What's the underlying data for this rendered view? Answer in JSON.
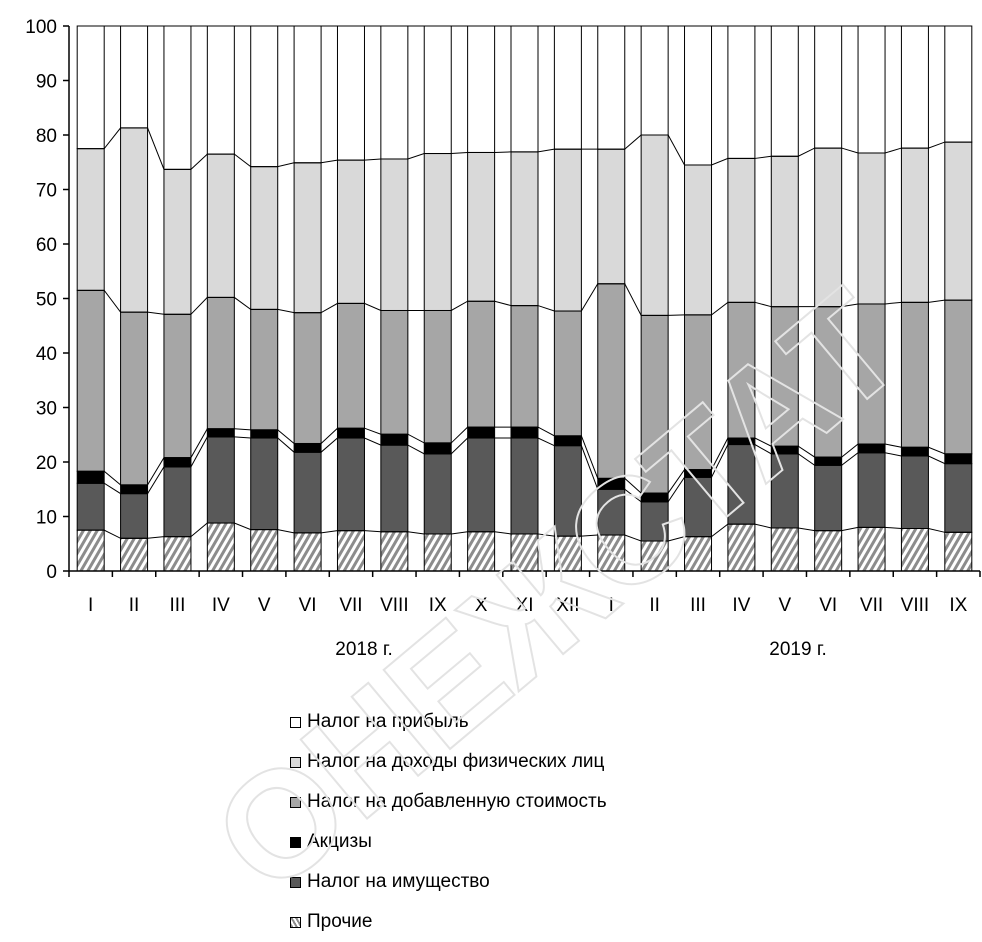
{
  "chart_data": {
    "type": "bar",
    "stacked": true,
    "ylim": [
      0,
      100
    ],
    "yticks": [
      0,
      10,
      20,
      30,
      40,
      50,
      60,
      70,
      80,
      90,
      100
    ],
    "categories": [
      "I",
      "II",
      "III",
      "IV",
      "V",
      "VI",
      "VII",
      "VIII",
      "IX",
      "X",
      "XI",
      "XII",
      "I",
      "II",
      "III",
      "IV",
      "V",
      "VI",
      "VII",
      "VIII",
      "IX"
    ],
    "year_groups": [
      {
        "label": "2018 г.",
        "from": 0,
        "to": 11
      },
      {
        "label": "2019 г.",
        "from": 12,
        "to": 20
      }
    ],
    "series": [
      {
        "name": "Прочие",
        "color": "#9a9a9a",
        "pattern": "hatch",
        "values": [
          7.5,
          6.0,
          6.3,
          8.8,
          7.6,
          7.0,
          7.4,
          7.2,
          6.8,
          7.2,
          6.8,
          6.4,
          6.6,
          5.5,
          6.3,
          8.6,
          7.9,
          7.4,
          8.0,
          7.8,
          7.1
        ]
      },
      {
        "name": "Налог на имущество",
        "color": "#595959",
        "values": [
          8.6,
          8.2,
          12.8,
          15.8,
          16.8,
          14.8,
          17.0,
          15.9,
          14.7,
          17.2,
          17.6,
          16.6,
          8.4,
          7.2,
          10.9,
          14.6,
          13.6,
          12.0,
          13.7,
          13.3,
          12.6
        ]
      },
      {
        "name": "Акцизы",
        "color": "#000000",
        "values": [
          2.2,
          1.6,
          1.7,
          1.5,
          1.5,
          1.6,
          1.8,
          2.0,
          2.0,
          2.0,
          2.0,
          1.8,
          2.0,
          1.6,
          1.4,
          1.2,
          1.4,
          1.5,
          1.6,
          1.6,
          1.8
        ]
      },
      {
        "name": "Налог на добавленную стоимость",
        "color": "#a6a6a6",
        "values": [
          33.2,
          31.7,
          26.3,
          24.1,
          22.1,
          24.0,
          22.9,
          22.7,
          24.3,
          23.1,
          22.3,
          22.9,
          35.7,
          32.6,
          28.4,
          24.9,
          25.6,
          27.6,
          25.7,
          26.6,
          28.2
        ]
      },
      {
        "name": "Налог на доходы физических лиц",
        "color": "#d9d9d9",
        "values": [
          26.0,
          33.8,
          26.6,
          26.3,
          26.2,
          27.5,
          26.3,
          27.8,
          28.8,
          27.3,
          28.2,
          29.7,
          24.7,
          33.1,
          27.5,
          26.4,
          27.6,
          29.1,
          27.7,
          28.3,
          29.0
        ]
      },
      {
        "name": "Налог на прибыль",
        "color": "#ffffff",
        "values": [
          22.5,
          18.7,
          26.3,
          23.5,
          25.8,
          25.1,
          24.6,
          24.4,
          23.4,
          23.2,
          23.1,
          22.6,
          22.6,
          20.0,
          25.5,
          24.3,
          23.9,
          22.4,
          23.3,
          22.4,
          21.3
        ]
      }
    ],
    "legend_order": [
      "Налог на прибыль",
      "Налог на доходы физических лиц",
      "Налог на добавленную стоимость",
      "Акцизы",
      "Налог на имущество",
      "Прочие"
    ],
    "legend_position": "bottom",
    "grid": false
  },
  "watermark": "ОНЕЖСТАТ"
}
